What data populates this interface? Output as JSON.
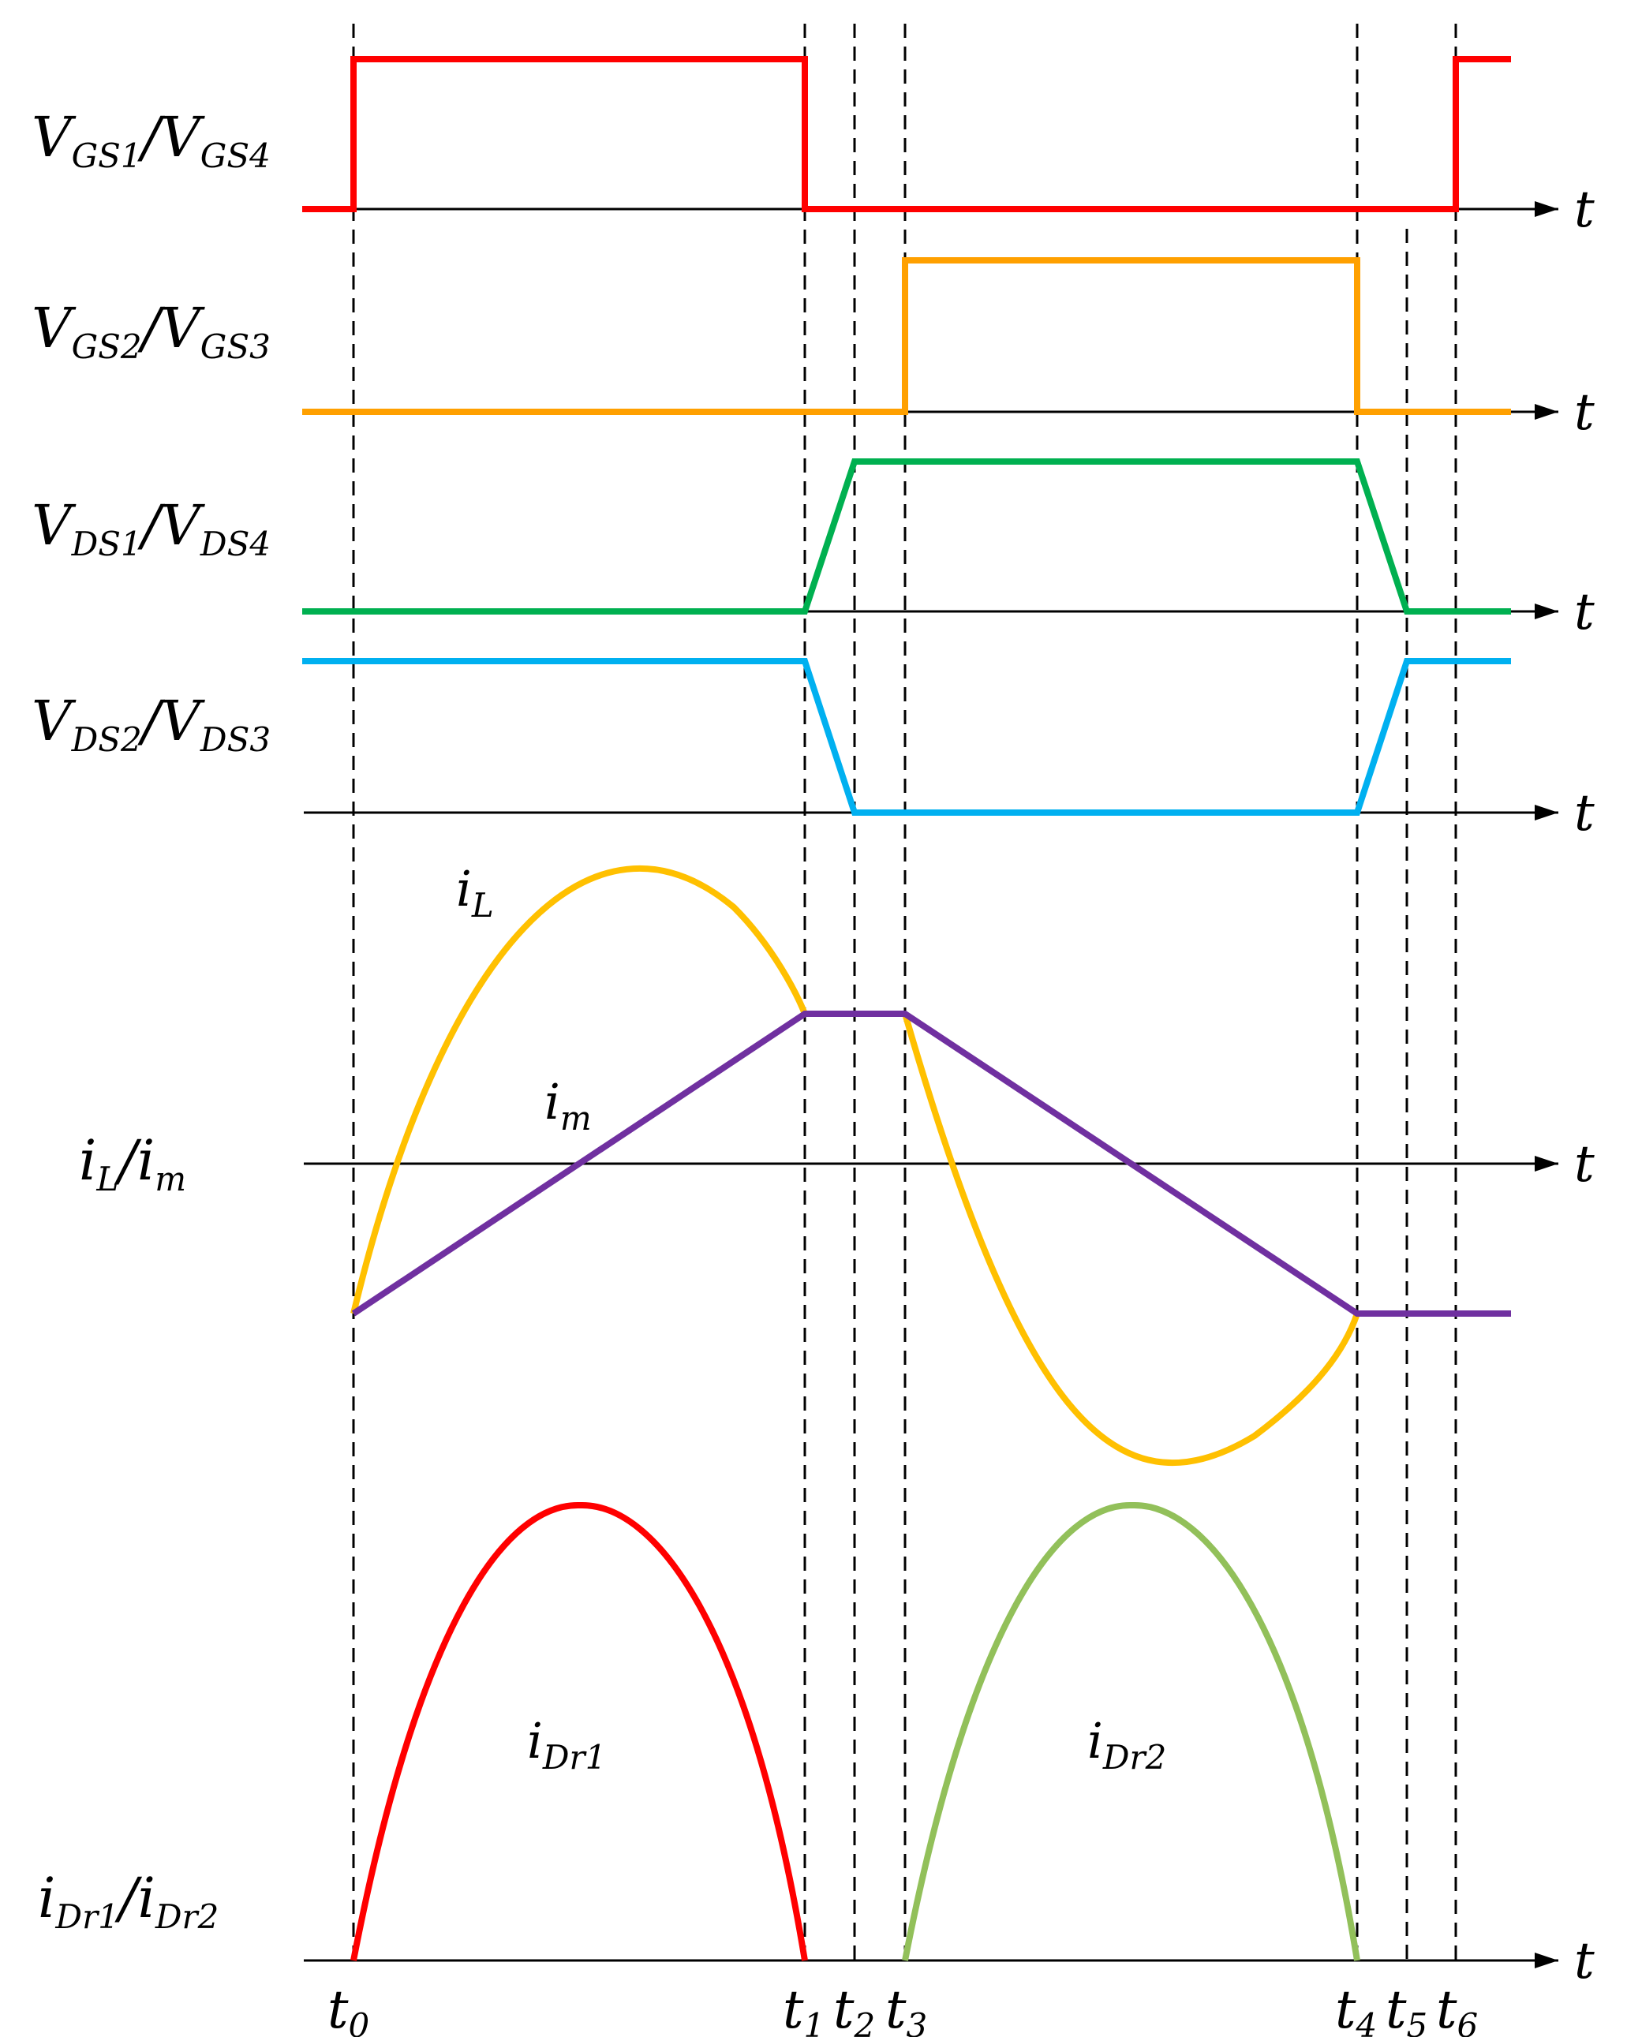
{
  "colors": {
    "vgs1": "#ff0000",
    "vgs2": "#ffa000",
    "vds1": "#00b050",
    "vds2": "#00b0f0",
    "iL": "#ffc000",
    "im": "#7030a0",
    "iDr1": "#ff0000",
    "iDr2": "#92c05a",
    "axis": "#000000"
  },
  "axis_symbol": "t",
  "row_labels": [
    {
      "base1": "V",
      "sub1": "GS1",
      "sep": "/",
      "base2": "V",
      "sub2": "GS4"
    },
    {
      "base1": "V",
      "sub1": "GS2",
      "sep": "/",
      "base2": "V",
      "sub2": "GS3"
    },
    {
      "base1": "V",
      "sub1": "DS1",
      "sep": "/",
      "base2": "V",
      "sub2": "DS4"
    },
    {
      "base1": "V",
      "sub1": "DS2",
      "sep": "/",
      "base2": "V",
      "sub2": "DS3"
    },
    {
      "base1": "i",
      "sub1": "L",
      "sep": "/",
      "base2": "i",
      "sub2": "m"
    },
    {
      "base1": "i",
      "sub1": "Dr1",
      "sep": "/",
      "base2": "i",
      "sub2": "Dr2"
    }
  ],
  "curve_labels": {
    "iL": {
      "base": "i",
      "sub": "L"
    },
    "im": {
      "base": "i",
      "sub": "m"
    },
    "iDr1": {
      "base": "i",
      "sub": "Dr1"
    },
    "iDr2": {
      "base": "i",
      "sub": "Dr2"
    }
  },
  "time_markers": [
    {
      "base": "t",
      "sub": "0"
    },
    {
      "base": "t",
      "sub": "1"
    },
    {
      "base": "t",
      "sub": "2"
    },
    {
      "base": "t",
      "sub": "3"
    },
    {
      "base": "t",
      "sub": "4"
    },
    {
      "base": "t",
      "sub": "5"
    },
    {
      "base": "t",
      "sub": "6"
    }
  ]
}
